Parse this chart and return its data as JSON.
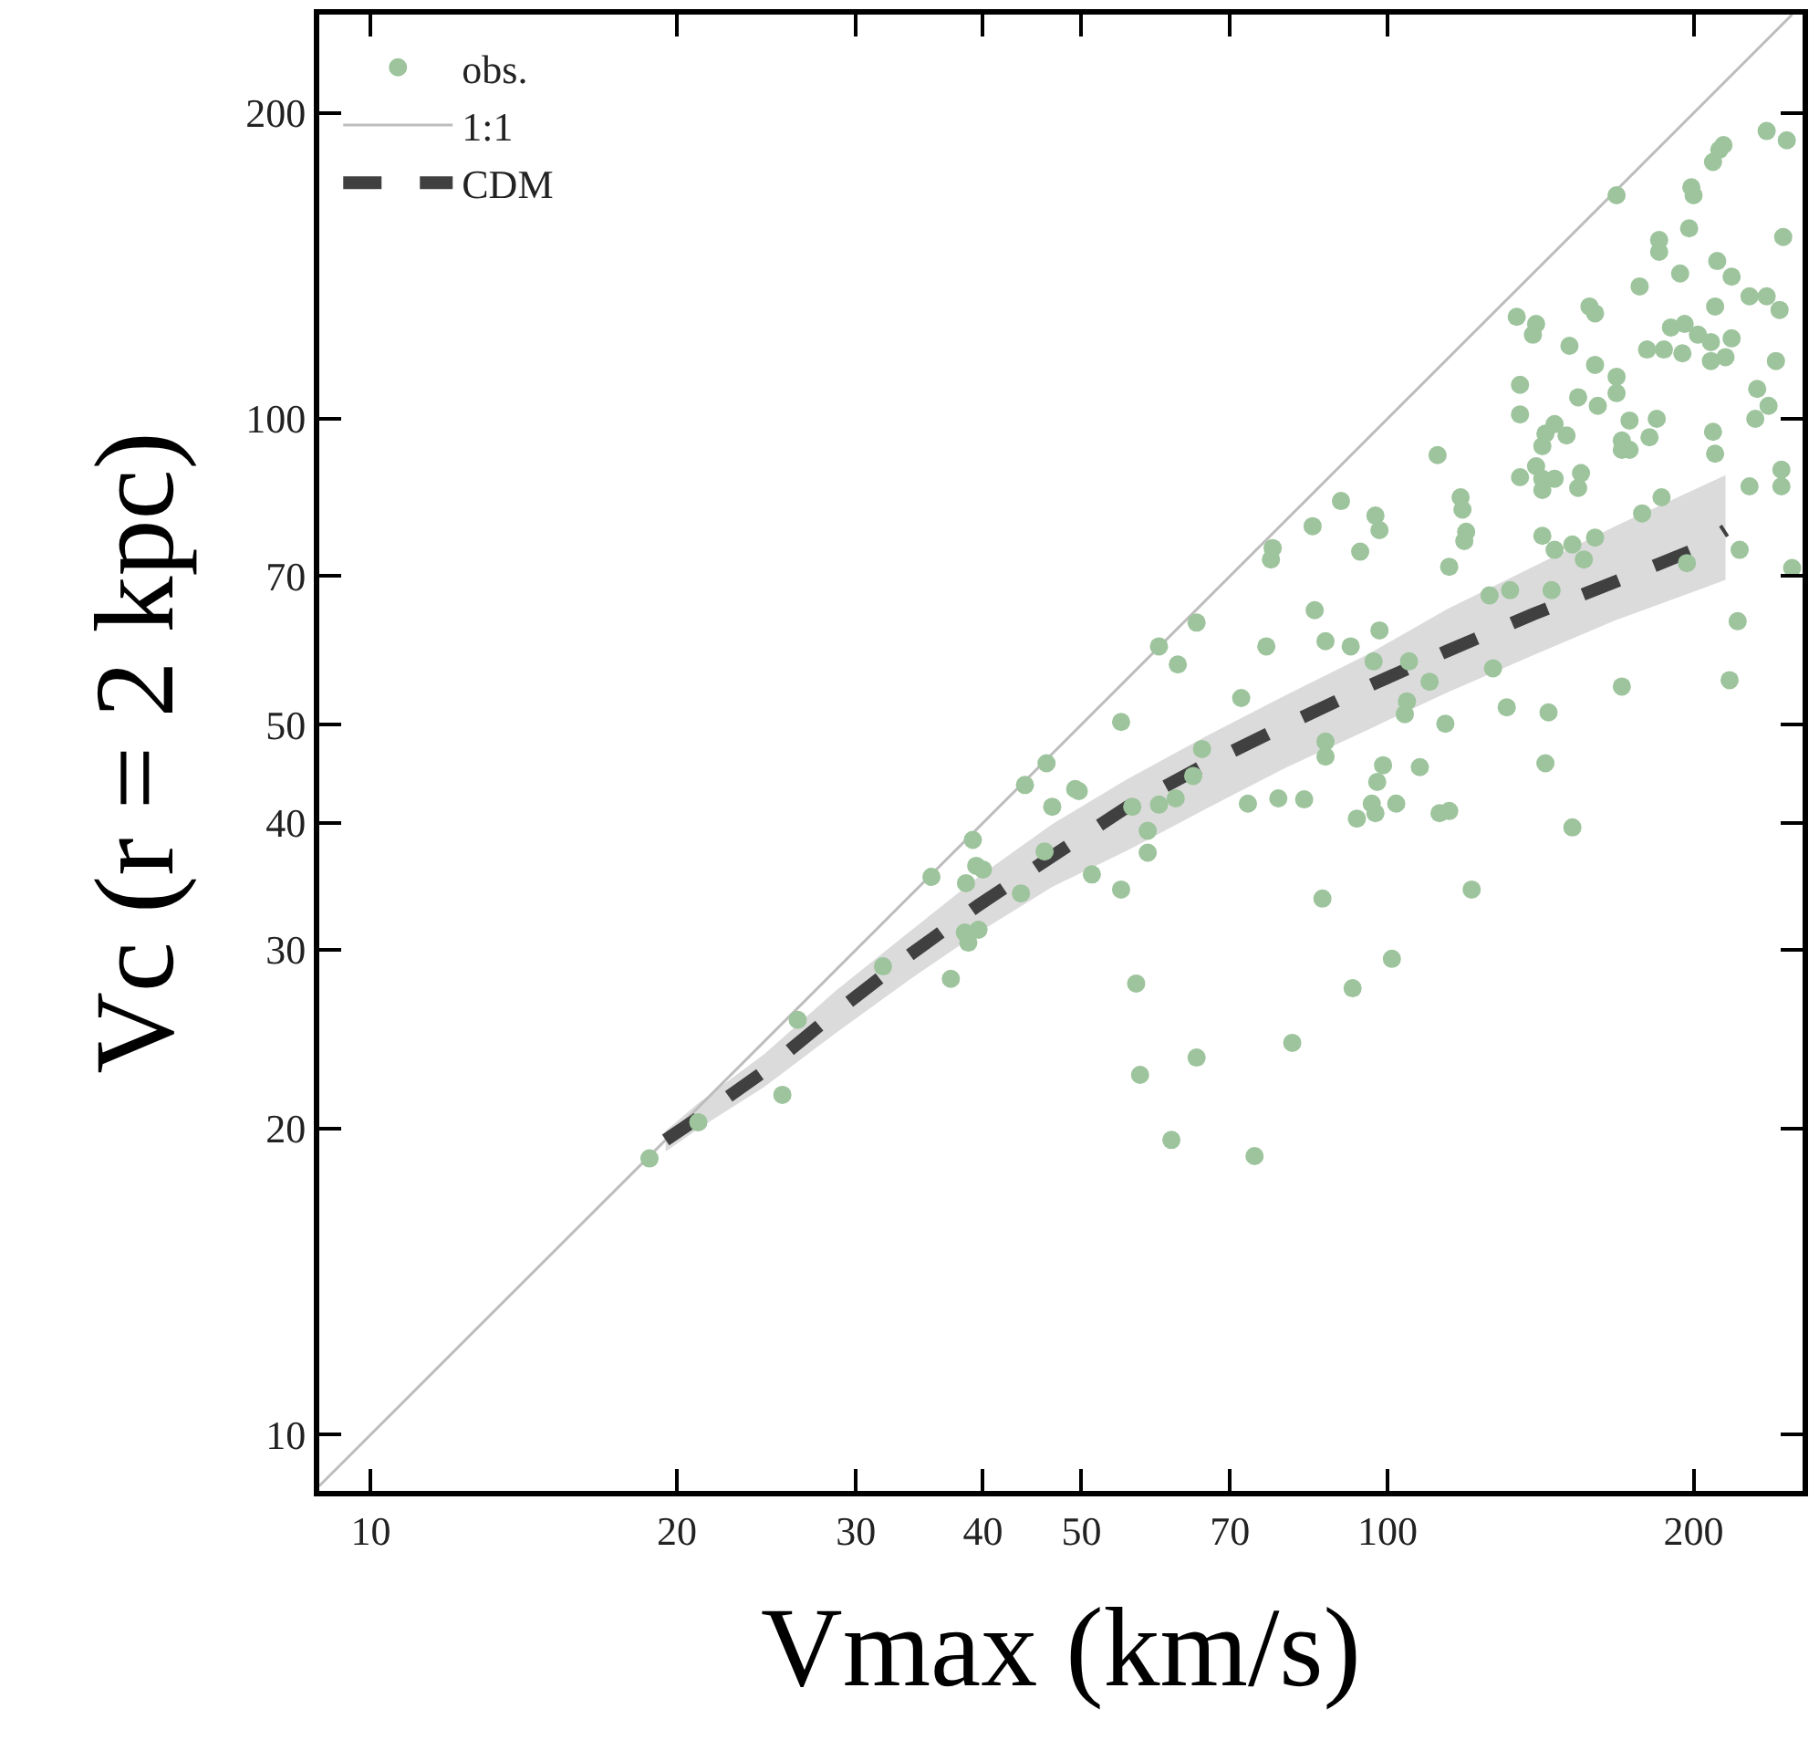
{
  "chart_data": {
    "type": "scatter",
    "xlabel": "Vmax (km/s)",
    "ylabel": "Vc (r = 2 kpc)",
    "log": "xy",
    "legend": "top left",
    "xlim": [
      8.9,
      256
    ],
    "ylim": [
      8.8,
      250
    ],
    "xticks": [
      10,
      20,
      30,
      40,
      50,
      70,
      100,
      200
    ],
    "yticks": [
      10,
      20,
      30,
      40,
      50,
      70,
      100,
      200
    ],
    "series": [
      {
        "name": "obs.",
        "marker": "circle",
        "color": "#9dc49c",
        "x": [
          18.8,
          21.0,
          25.4,
          26.3,
          31.9,
          35.6,
          37.2,
          38.4,
          38.7,
          39.6,
          38.5,
          39.4,
          40.0,
          39.1,
          43.6,
          46.0,
          46.2,
          44.0,
          49.3,
          46.8,
          112,
          118,
          118.5,
          119.5,
          119,
          90.0,
          97.3,
          98.2,
          84.4,
          94.0,
          77.1,
          76.8,
          115,
          64.9,
          59.6,
          62.2,
          84.8,
          76.0,
          86.9,
          92.0,
          98.2,
          96.9,
          105,
          110,
          104.5,
          104,
          114,
          126,
          127,
          54.7,
          71.8,
          49.7,
          65.7,
          64.4,
          86.9,
          86.9,
          99.0,
          97.7,
          107.6,
          56.1,
          59.6,
          61.9,
          58.1,
          58.1,
          72.9,
          78.1,
          82.8,
          96.5,
          97.3,
          93.3,
          102,
          112.5,
          115,
          51.2,
          54.7,
          86.3,
          121,
          56.6,
          101,
          92.4,
          64.9,
          57.1,
          80.6,
          61.3,
          74.0,
          236,
          247,
          214,
          212,
          209,
          168,
          199,
          200,
          198,
          245,
          185,
          185,
          194,
          211,
          218,
          177,
          227,
          236,
          243,
          210,
          134,
          140,
          139,
          158,
          160,
          151,
          180,
          187,
          190,
          196,
          202,
          208,
          195,
          218,
          208,
          215,
          241,
          160,
          168,
          168,
          161,
          154,
          135,
          135,
          231,
          237,
          230,
          146,
          143,
          150,
          142,
          173,
          184,
          181,
          170,
          170,
          173,
          209,
          210,
          140,
          135,
          142,
          146,
          142,
          155,
          154,
          244,
          244,
          227,
          186,
          178,
          142,
          146,
          152,
          156,
          160,
          145,
          132,
          222,
          197,
          250,
          221,
          170,
          217,
          131,
          144,
          143,
          152
        ],
        "values": [
          18.7,
          20.3,
          21.6,
          25.6,
          28.9,
          35.4,
          28.1,
          31.2,
          30.5,
          31.4,
          34.9,
          36.3,
          36.0,
          38.5,
          34.1,
          37.5,
          45.8,
          43.6,
          43.2,
          41.5,
          92.1,
          83.7,
          81.4,
          77.4,
          75.8,
          83.0,
          80.3,
          77.7,
          78.4,
          74.0,
          74.6,
          72.7,
          71.5,
          63.0,
          59.7,
          57.3,
          64.8,
          59.7,
          60.4,
          59.7,
          61.9,
          57.7,
          57.7,
          55.1,
          52.7,
          51.2,
          50.1,
          67.0,
          56.8,
          50.3,
          53.1,
          43.0,
          47.3,
          44.5,
          48.1,
          46.5,
          45.6,
          43.9,
          45.4,
          41.5,
          41.7,
          42.3,
          39.3,
          37.4,
          41.8,
          42.3,
          42.2,
          41.8,
          40.9,
          40.4,
          41.8,
          40.9,
          41.1,
          35.6,
          34.4,
          33.7,
          34.4,
          27.8,
          29.4,
          27.5,
          23.5,
          22.6,
          24.3,
          19.5,
          18.8,
          192,
          188,
          186,
          184,
          179,
          166,
          169,
          166,
          154,
          151,
          150,
          146,
          139,
          143,
          138,
          135,
          132,
          132,
          128,
          129,
          126,
          124,
          121,
          129,
          127,
          118,
          117,
          117,
          123,
          124,
          121,
          119,
          116,
          120,
          114,
          115,
          114,
          113,
          110,
          106,
          103,
          105,
          108,
          101,
          107,
          103,
          100,
          98.8,
          96.7,
          96.3,
          94.0,
          99.6,
          100,
          95.9,
          95.2,
          93.2,
          93.2,
          97.1,
          92.4,
          89.8,
          87.6,
          87.3,
          87.3,
          85.1,
          88.4,
          85.5,
          89.1,
          85.8,
          85.8,
          83.7,
          80.7,
          76.7,
          74.3,
          75.2,
          72.7,
          76.4,
          67.8,
          67.8,
          74.3,
          72.1,
          71.3,
          63.2,
          54.5,
          55.3,
          52.0,
          51.4,
          45.8,
          39.6
        ]
      },
      {
        "name": "1:1",
        "type": "line",
        "line_style": "solid",
        "color": "#bdbdbd",
        "x": [
          8.9,
          250
        ],
        "values": [
          8.9,
          250
        ]
      },
      {
        "name": "CDM",
        "type": "line",
        "line_style": "dashed",
        "color": "#404040",
        "x": [
          19.5,
          21,
          24.4,
          28.6,
          33.8,
          39.6,
          46.8,
          55.5,
          66.6,
          79.3,
          95.6,
          114.6,
          139,
          168,
          202,
          215
        ],
        "values": [
          19.5,
          20.5,
          22.8,
          26.0,
          29.6,
          33.2,
          37.1,
          41.5,
          45.8,
          49.9,
          54.5,
          59.1,
          64.2,
          69.2,
          74.6,
          77.7
        ],
        "lower": [
          19.0,
          20.0,
          22.0,
          24.8,
          28.0,
          31.2,
          34.6,
          37.6,
          41.4,
          45.3,
          49.4,
          53.8,
          58.5,
          63.4,
          67.8,
          69.4
        ],
        "upper": [
          19.9,
          21.2,
          23.7,
          27.3,
          31.2,
          35.4,
          39.9,
          44.2,
          48.8,
          53.4,
          58.6,
          65.0,
          71.5,
          78.5,
          85.5,
          88.0
        ]
      }
    ]
  }
}
